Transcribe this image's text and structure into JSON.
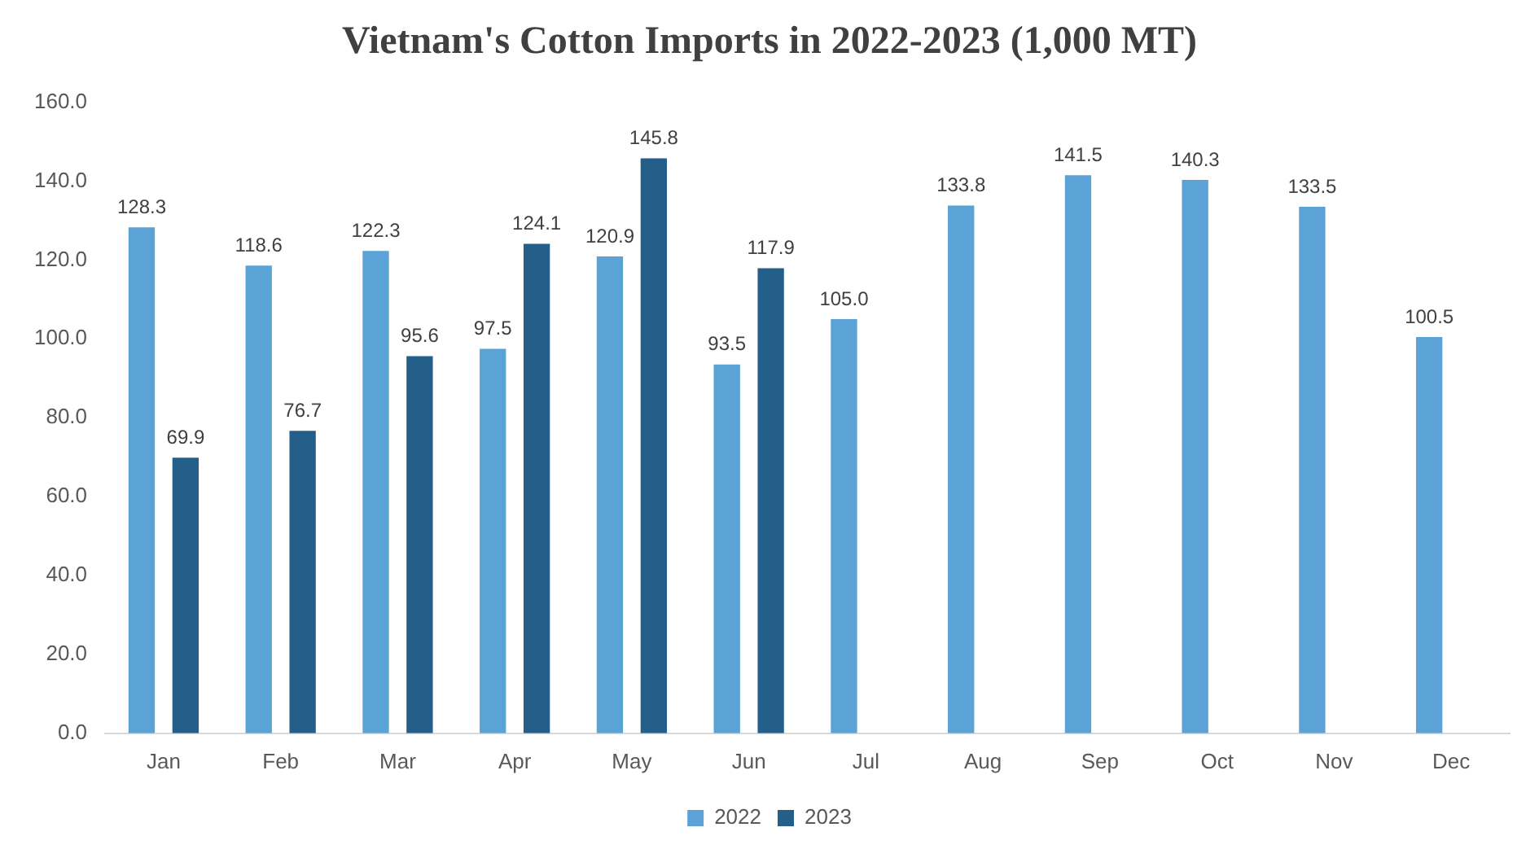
{
  "chart_data": {
    "type": "bar",
    "title": "Vietnam's Cotton Imports in 2022-2023 (1,000 MT)",
    "categories": [
      "Jan",
      "Feb",
      "Mar",
      "Apr",
      "May",
      "Jun",
      "Jul",
      "Aug",
      "Sep",
      "Oct",
      "Nov",
      "Dec"
    ],
    "series": [
      {
        "name": "2022",
        "color": "#5ba3d6",
        "values": [
          128.3,
          118.6,
          122.3,
          97.5,
          120.9,
          93.5,
          105.0,
          133.8,
          141.5,
          140.3,
          133.5,
          100.5
        ],
        "value_labels": [
          "128.3",
          "118.6",
          "122.3",
          "97.5",
          "120.9",
          "93.5",
          "105.0",
          "133.8",
          "141.5",
          "140.3",
          "133.5",
          "100.5"
        ]
      },
      {
        "name": "2023",
        "color": "#245f8a",
        "values": [
          69.9,
          76.7,
          95.6,
          124.1,
          145.8,
          117.9,
          null,
          null,
          null,
          null,
          null,
          null
        ],
        "value_labels": [
          "69.9",
          "76.7",
          "95.6",
          "124.1",
          "145.8",
          "117.9",
          null,
          null,
          null,
          null,
          null,
          null
        ]
      }
    ],
    "ylim": [
      0,
      160
    ],
    "yticks": [
      {
        "value": 0,
        "label": "0.0"
      },
      {
        "value": 20,
        "label": "20.0"
      },
      {
        "value": 40,
        "label": "40.0"
      },
      {
        "value": 60,
        "label": "60.0"
      },
      {
        "value": 80,
        "label": "80.0"
      },
      {
        "value": 100,
        "label": "100.0"
      },
      {
        "value": 120,
        "label": "120.0"
      },
      {
        "value": 140,
        "label": "140.0"
      },
      {
        "value": 160,
        "label": "160.0"
      }
    ],
    "grid": false,
    "legend": "bottom"
  }
}
